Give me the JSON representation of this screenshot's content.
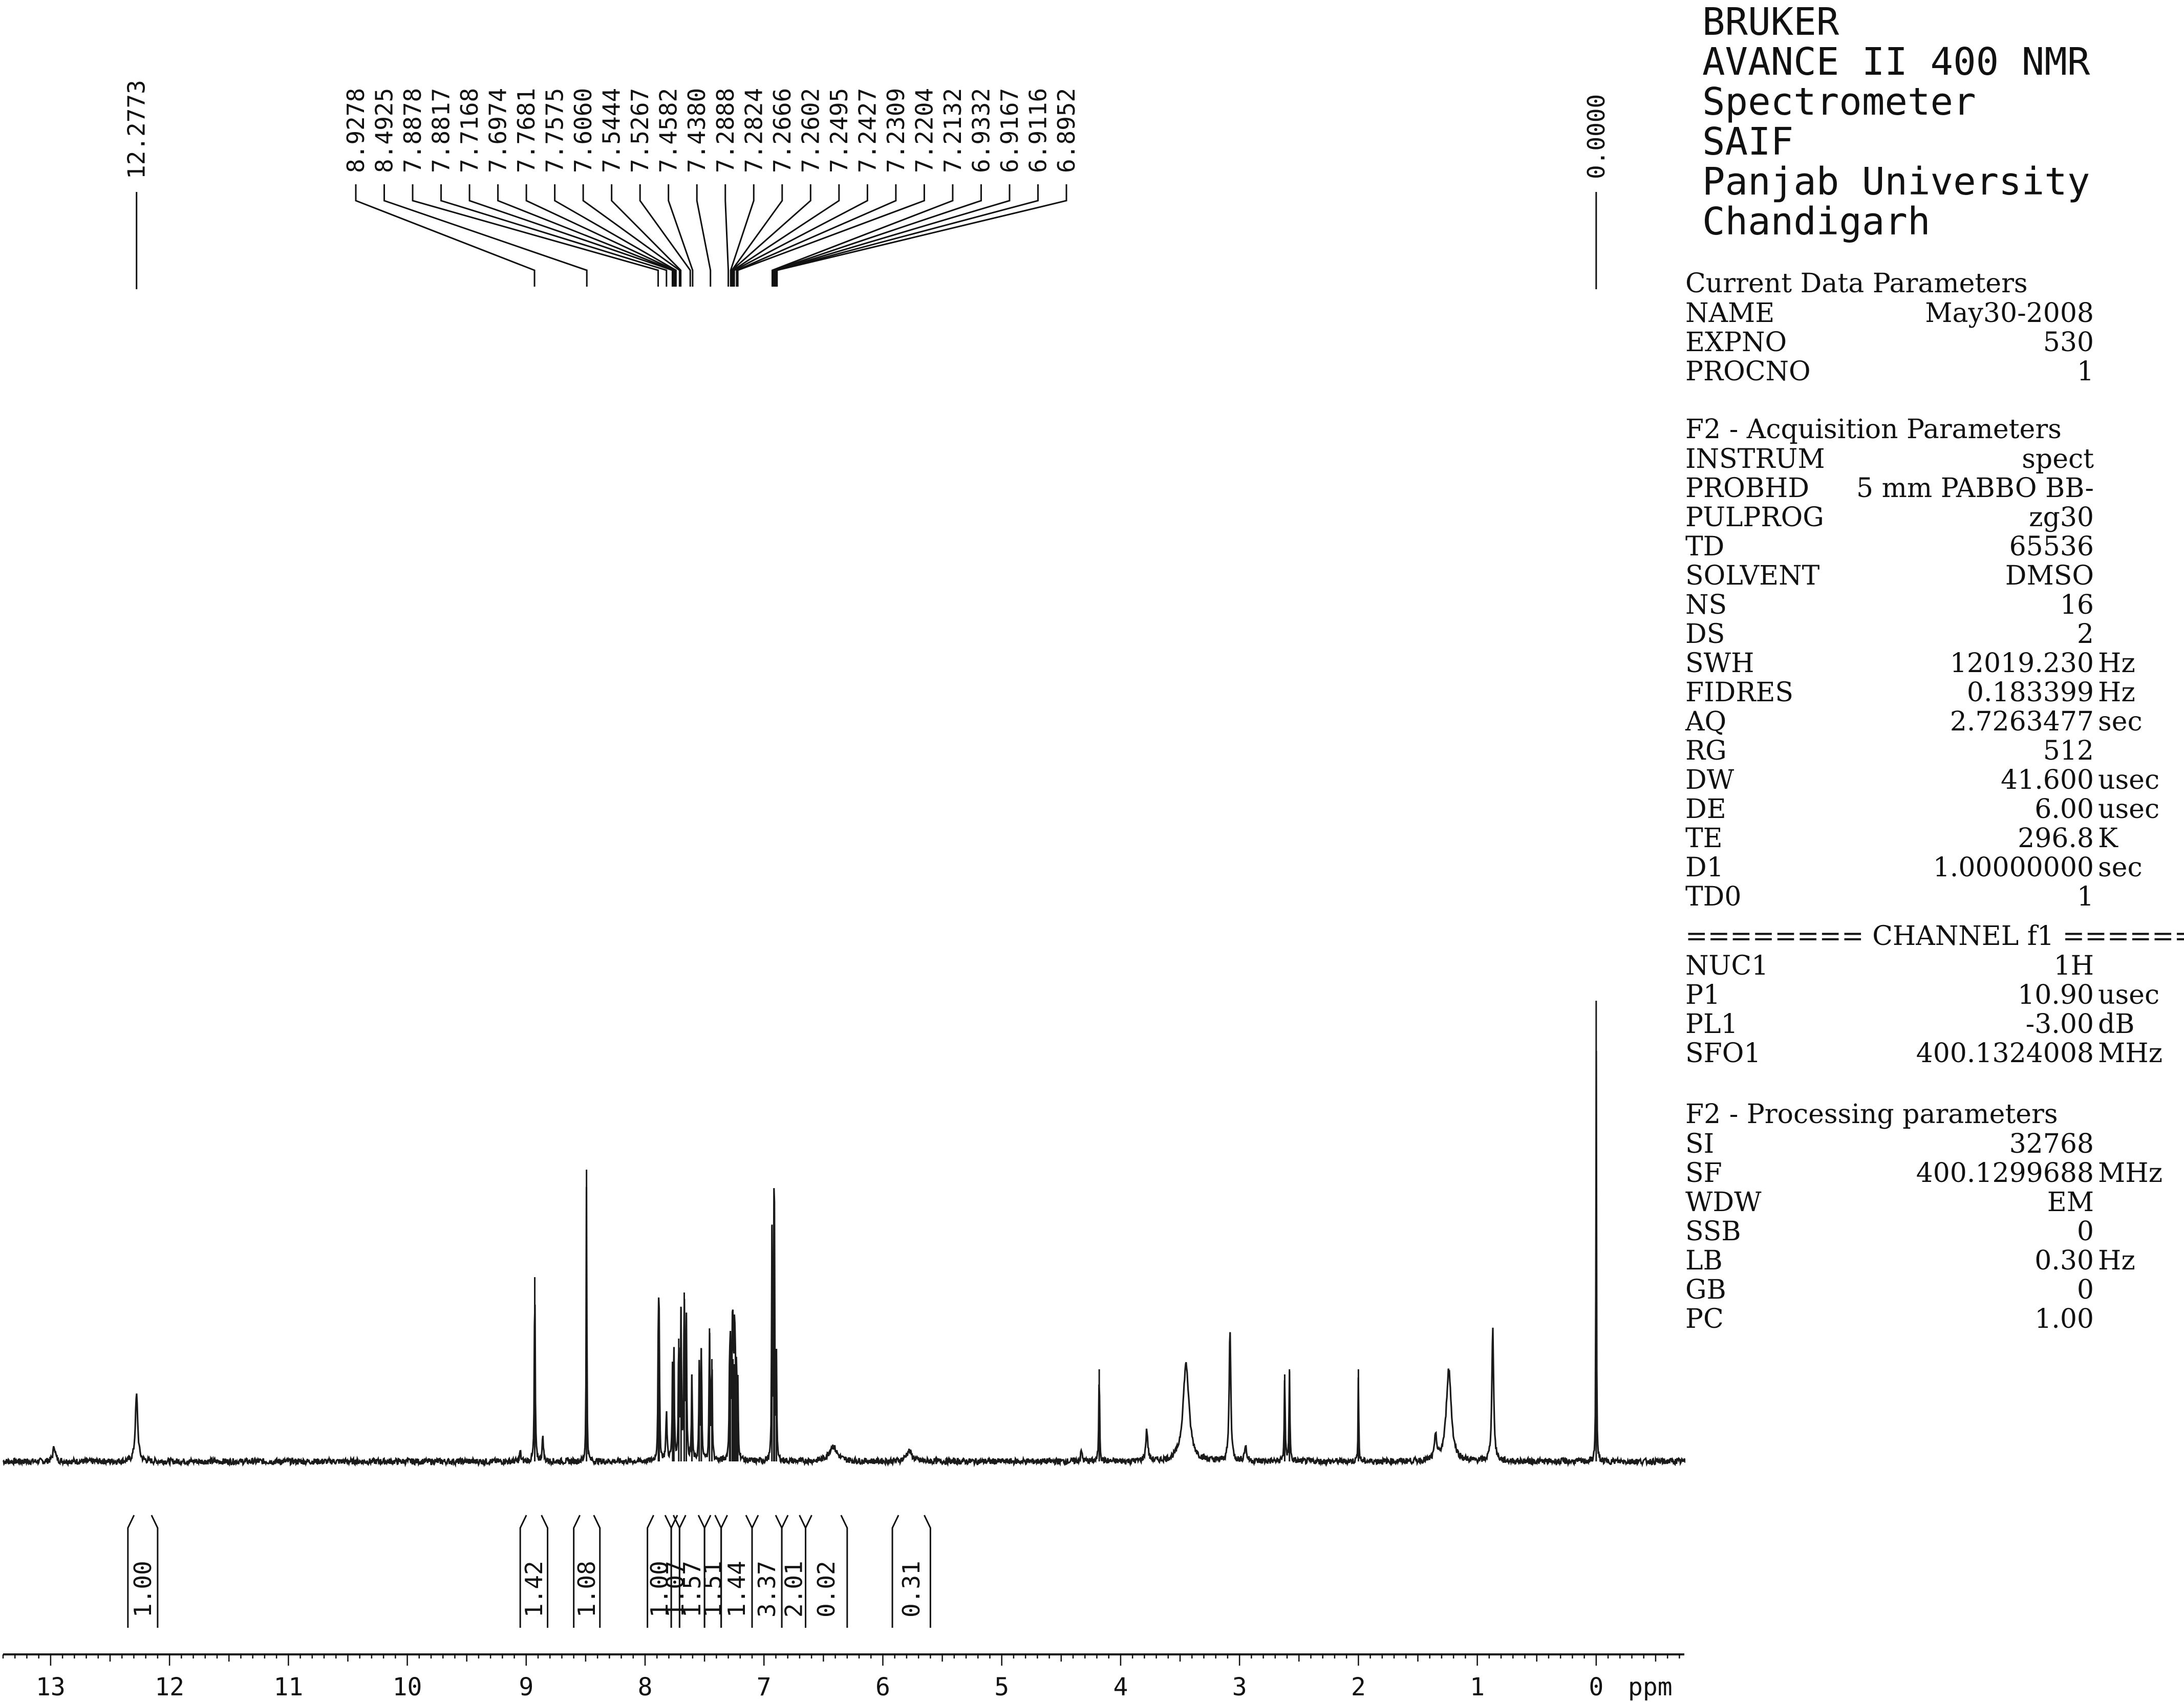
{
  "header_lines": [
    "BRUKER",
    "AVANCE II 400 NMR",
    "Spectrometer",
    "SAIF",
    "Panjab University",
    "Chandigarh"
  ],
  "current_data": {
    "title": "Current Data Parameters",
    "rows": [
      {
        "key": "NAME",
        "value": "May30-2008",
        "unit": ""
      },
      {
        "key": "EXPNO",
        "value": "530",
        "unit": ""
      },
      {
        "key": "PROCNO",
        "value": "1",
        "unit": ""
      }
    ]
  },
  "acquisition": {
    "title": "F2 - Acquisition Parameters",
    "rows": [
      {
        "key": "INSTRUM",
        "value": "spect",
        "unit": ""
      },
      {
        "key": "PROBHD",
        "value": "5 mm PABBO BB-",
        "unit": ""
      },
      {
        "key": "PULPROG",
        "value": "zg30",
        "unit": ""
      },
      {
        "key": "TD",
        "value": "65536",
        "unit": ""
      },
      {
        "key": "SOLVENT",
        "value": "DMSO",
        "unit": ""
      },
      {
        "key": "NS",
        "value": "16",
        "unit": ""
      },
      {
        "key": "DS",
        "value": "2",
        "unit": ""
      },
      {
        "key": "SWH",
        "value": "12019.230",
        "unit": "Hz"
      },
      {
        "key": "FIDRES",
        "value": "0.183399",
        "unit": "Hz"
      },
      {
        "key": "AQ",
        "value": "2.7263477",
        "unit": "sec"
      },
      {
        "key": "RG",
        "value": "512",
        "unit": ""
      },
      {
        "key": "DW",
        "value": "41.600",
        "unit": "usec"
      },
      {
        "key": "DE",
        "value": "6.00",
        "unit": "usec"
      },
      {
        "key": "TE",
        "value": "296.8",
        "unit": "K"
      },
      {
        "key": "D1",
        "value": "1.00000000",
        "unit": "sec"
      },
      {
        "key": "TD0",
        "value": "1",
        "unit": ""
      }
    ]
  },
  "channel": {
    "title": "======== CHANNEL f1 ========",
    "rows": [
      {
        "key": "NUC1",
        "value": "1H",
        "unit": ""
      },
      {
        "key": "P1",
        "value": "10.90",
        "unit": "usec"
      },
      {
        "key": "PL1",
        "value": "-3.00",
        "unit": "dB"
      },
      {
        "key": "SFO1",
        "value": "400.1324008",
        "unit": "MHz"
      }
    ]
  },
  "processing": {
    "title": "F2 - Processing parameters",
    "rows": [
      {
        "key": "SI",
        "value": "32768",
        "unit": ""
      },
      {
        "key": "SF",
        "value": "400.1299688",
        "unit": "MHz"
      },
      {
        "key": "WDW",
        "value": "EM",
        "unit": ""
      },
      {
        "key": "SSB",
        "value": "0",
        "unit": ""
      },
      {
        "key": "LB",
        "value": "0.30",
        "unit": "Hz"
      },
      {
        "key": "GB",
        "value": "0",
        "unit": ""
      },
      {
        "key": "PC",
        "value": "1.00",
        "unit": ""
      }
    ]
  },
  "chart_data": {
    "type": "line",
    "title": "",
    "xlabel": "ppm",
    "ylabel": "",
    "xlim": [
      13.4,
      -0.75
    ],
    "x_ticks": [
      13,
      12,
      11,
      10,
      9,
      8,
      7,
      6,
      5,
      4,
      3,
      2,
      1,
      0
    ],
    "x_tick_labels": [
      "13",
      "12",
      "11",
      "10",
      "9",
      "8",
      "7",
      "6",
      "5",
      "4",
      "3",
      "2",
      "1",
      "0"
    ],
    "grid": false,
    "peaks": [
      {
        "ppm": 12.97,
        "height": 0.03,
        "width": 0.012
      },
      {
        "ppm": 12.2773,
        "height": 0.13,
        "width": 0.012
      },
      {
        "ppm": 9.05,
        "height": 0.02,
        "width": 0.006
      },
      {
        "ppm": 8.9278,
        "height": 0.36,
        "width": 0.004
      },
      {
        "ppm": 8.86,
        "height": 0.05,
        "width": 0.006
      },
      {
        "ppm": 8.4925,
        "height": 0.57,
        "width": 0.003
      },
      {
        "ppm": 7.8878,
        "height": 0.26,
        "width": 0.004
      },
      {
        "ppm": 7.8817,
        "height": 0.22,
        "width": 0.004
      },
      {
        "ppm": 7.82,
        "height": 0.09,
        "width": 0.006
      },
      {
        "ppm": 7.7168,
        "height": 0.24,
        "width": 0.004
      },
      {
        "ppm": 7.6974,
        "height": 0.3,
        "width": 0.004
      },
      {
        "ppm": 7.7681,
        "height": 0.18,
        "width": 0.004
      },
      {
        "ppm": 7.7575,
        "height": 0.2,
        "width": 0.004
      },
      {
        "ppm": 7.6706,
        "height": 0.33,
        "width": 0.004
      },
      {
        "ppm": 7.6532,
        "height": 0.28,
        "width": 0.004
      },
      {
        "ppm": 7.606,
        "height": 0.17,
        "width": 0.004
      },
      {
        "ppm": 7.5444,
        "height": 0.18,
        "width": 0.004
      },
      {
        "ppm": 7.5267,
        "height": 0.22,
        "width": 0.004
      },
      {
        "ppm": 7.4582,
        "height": 0.26,
        "width": 0.004
      },
      {
        "ppm": 7.438,
        "height": 0.2,
        "width": 0.004
      },
      {
        "ppm": 7.2888,
        "height": 0.17,
        "width": 0.004
      },
      {
        "ppm": 7.2824,
        "height": 0.18,
        "width": 0.004
      },
      {
        "ppm": 7.2666,
        "height": 0.2,
        "width": 0.004
      },
      {
        "ppm": 7.2602,
        "height": 0.2,
        "width": 0.004
      },
      {
        "ppm": 7.2495,
        "height": 0.19,
        "width": 0.004
      },
      {
        "ppm": 7.2427,
        "height": 0.19,
        "width": 0.004
      },
      {
        "ppm": 7.2309,
        "height": 0.16,
        "width": 0.004
      },
      {
        "ppm": 7.2204,
        "height": 0.14,
        "width": 0.004
      },
      {
        "ppm": 6.9332,
        "height": 0.46,
        "width": 0.003
      },
      {
        "ppm": 6.9167,
        "height": 0.42,
        "width": 0.003
      },
      {
        "ppm": 6.9116,
        "height": 0.38,
        "width": 0.003
      },
      {
        "ppm": 6.8952,
        "height": 0.2,
        "width": 0.003
      },
      {
        "ppm": 6.42,
        "height": 0.03,
        "width": 0.04
      },
      {
        "ppm": 5.78,
        "height": 0.02,
        "width": 0.03
      },
      {
        "ppm": 4.33,
        "height": 0.02,
        "width": 0.008
      },
      {
        "ppm": 4.18,
        "height": 0.18,
        "width": 0.004
      },
      {
        "ppm": 3.78,
        "height": 0.06,
        "width": 0.01
      },
      {
        "ppm": 3.45,
        "height": 0.19,
        "width": 0.03
      },
      {
        "ppm": 3.08,
        "height": 0.26,
        "width": 0.008
      },
      {
        "ppm": 2.95,
        "height": 0.03,
        "width": 0.01
      },
      {
        "ppm": 2.62,
        "height": 0.17,
        "width": 0.004
      },
      {
        "ppm": 2.58,
        "height": 0.18,
        "width": 0.004
      },
      {
        "ppm": 2.0,
        "height": 0.18,
        "width": 0.003
      },
      {
        "ppm": 1.35,
        "height": 0.05,
        "width": 0.01
      },
      {
        "ppm": 1.24,
        "height": 0.18,
        "width": 0.025
      },
      {
        "ppm": 0.87,
        "height": 0.26,
        "width": 0.009
      },
      {
        "ppm": 0.0,
        "height": 0.9,
        "width": 0.0025
      }
    ],
    "peak_labels": [
      "8.9278",
      "8.4925",
      "7.8878",
      "7.8817",
      "7.7168",
      "7.6974",
      "7.7681",
      "7.7575",
      "7.6060",
      "7.5444",
      "7.5267",
      "7.4582",
      "7.4380",
      "7.2888",
      "7.2824",
      "7.2666",
      "7.2602",
      "7.2495",
      "7.2427",
      "7.2309",
      "7.2204",
      "7.2132",
      "6.9332",
      "6.9167",
      "6.9116",
      "6.8952"
    ],
    "peak_label_targets": [
      8.93,
      8.49,
      7.89,
      7.82,
      7.77,
      7.76,
      7.75,
      7.74,
      7.71,
      7.7,
      7.62,
      7.6,
      7.45,
      7.3,
      7.28,
      7.27,
      7.27,
      7.26,
      7.25,
      7.23,
      7.22,
      6.93,
      6.92,
      6.91,
      6.9,
      6.89
    ],
    "isolated_peak_labels": [
      {
        "text": "12.2773",
        "ppm": 12.2773
      },
      {
        "text": "0.0000",
        "ppm": 0.0
      }
    ],
    "integrals": [
      {
        "value": "1.00",
        "from": 12.35,
        "to": 12.1
      },
      {
        "value": "1.42",
        "from": 9.05,
        "to": 8.82
      },
      {
        "value": "1.08",
        "from": 8.6,
        "to": 8.38
      },
      {
        "value": "1.00",
        "from": 7.98,
        "to": 7.78
      },
      {
        "value": "1.07",
        "from": 7.78,
        "to": 7.71
      },
      {
        "value": "1.57",
        "from": 7.71,
        "to": 7.5
      },
      {
        "value": "1.51",
        "from": 7.5,
        "to": 7.36
      },
      {
        "value": "1.44",
        "from": 7.36,
        "to": 7.1
      },
      {
        "value": "3.37",
        "from": 7.1,
        "to": 6.85
      },
      {
        "value": "2.01",
        "from": 6.85,
        "to": 6.65
      },
      {
        "value": "0.02",
        "from": 6.65,
        "to": 6.3
      },
      {
        "value": "0.31",
        "from": 5.92,
        "to": 5.6
      }
    ]
  }
}
